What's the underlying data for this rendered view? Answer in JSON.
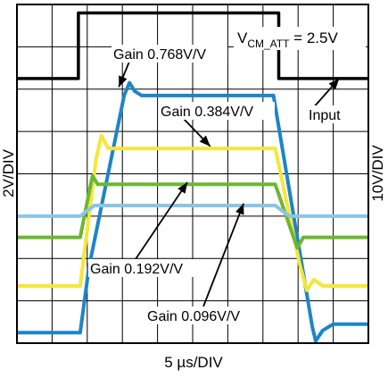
{
  "chart_data": {
    "type": "line",
    "title": "",
    "xlabel": "5 µs/DIV",
    "ylabel_left": "2V/DIV",
    "ylabel_right": "10V/DIV",
    "annotation_vcm": {
      "main": "V",
      "sub": "CM_ATT",
      "rest": " = 2.5V"
    },
    "grid": true,
    "x_divisions": 10,
    "y_divisions": 8,
    "xlim": [
      0,
      10
    ],
    "ylim": [
      -4,
      4
    ],
    "series": [
      {
        "name": "Input",
        "label": "Input",
        "color": "#000000",
        "x": [
          0,
          1.75,
          1.75,
          7.45,
          7.45,
          10
        ],
        "y": [
          2.25,
          2.25,
          3.8,
          3.8,
          2.25,
          2.25
        ]
      },
      {
        "name": "Gain 0.768V/V",
        "label": "Gain 0.768V/V",
        "color": "#1d85c7",
        "x": [
          0,
          1.8,
          2.05,
          3.05,
          3.2,
          3.35,
          3.55,
          3.9,
          7.3,
          8.4,
          8.5,
          8.7,
          9.0,
          10
        ],
        "y": [
          -3.75,
          -3.75,
          -2.2,
          1.85,
          2.15,
          1.95,
          1.85,
          1.85,
          1.85,
          -3.6,
          -3.95,
          -3.7,
          -3.55,
          -3.55
        ]
      },
      {
        "name": "Gain 0.384V/V",
        "label": "Gain 0.384V/V",
        "color": "#f5e63a",
        "x": [
          0,
          1.8,
          2.05,
          2.25,
          2.4,
          2.6,
          2.8,
          7.35,
          8.05,
          8.25,
          8.45,
          8.7,
          10
        ],
        "y": [
          -2.65,
          -2.65,
          -1.0,
          0.35,
          0.9,
          0.6,
          0.6,
          0.6,
          -2.15,
          -2.75,
          -2.5,
          -2.65,
          -2.65
        ]
      },
      {
        "name": "Gain 0.192V/V",
        "label": "Gain 0.192V/V",
        "color": "#6cb732",
        "x": [
          0,
          1.8,
          2.05,
          2.15,
          2.3,
          2.5,
          7.35,
          7.85,
          7.98,
          8.15,
          8.4,
          10
        ],
        "y": [
          -1.5,
          -1.5,
          -0.45,
          -0.05,
          -0.25,
          -0.25,
          -0.25,
          -1.45,
          -1.75,
          -1.5,
          -1.5,
          -1.5
        ]
      },
      {
        "name": "Gain 0.096V/V",
        "label": "Gain 0.096V/V",
        "color": "#8bc4e6",
        "x": [
          0,
          1.8,
          2.2,
          7.35,
          7.75,
          10
        ],
        "y": [
          -1.0,
          -1.0,
          -0.75,
          -0.75,
          -1.0,
          -1.0
        ]
      }
    ]
  }
}
